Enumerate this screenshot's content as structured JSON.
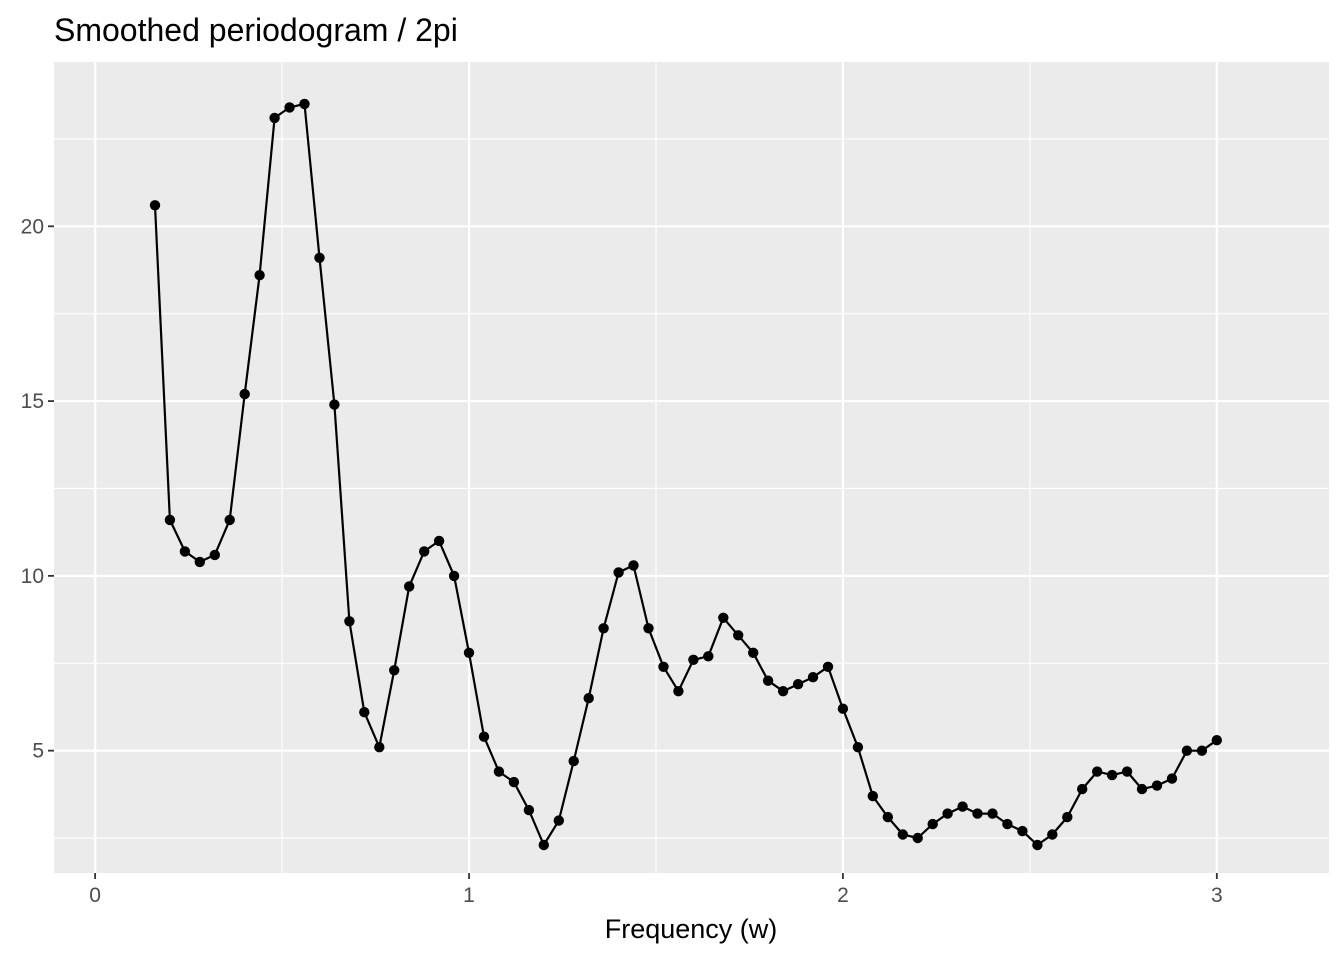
{
  "chart_data": {
    "type": "line",
    "title": "Smoothed periodogram / 2pi",
    "xlabel": "Frequency (w)",
    "ylabel": "",
    "xlim": [
      -0.11,
      3.3
    ],
    "ylim": [
      1.5,
      24.7
    ],
    "x_ticks": [
      0,
      1,
      2,
      3
    ],
    "y_ticks": [
      5,
      10,
      15,
      20
    ],
    "x_tick_labels": [
      "0",
      "1",
      "2",
      "3"
    ],
    "y_tick_labels": [
      "5",
      "10",
      "15",
      "20"
    ],
    "grid": true,
    "panel_background": "#ebebeb",
    "line_color": "#000000",
    "point_color": "#000000",
    "series": [
      {
        "x": [
          0.16,
          0.2,
          0.24,
          0.28,
          0.32,
          0.36,
          0.4,
          0.44,
          0.48,
          0.52,
          0.56,
          0.6,
          0.64,
          0.68,
          0.72,
          0.76,
          0.8,
          0.84,
          0.88,
          0.92,
          0.96,
          1.0,
          1.04,
          1.08,
          1.12,
          1.16,
          1.2,
          1.24,
          1.28,
          1.32,
          1.36,
          1.4,
          1.44,
          1.48,
          1.52,
          1.56,
          1.6,
          1.64,
          1.68,
          1.72,
          1.76,
          1.8,
          1.84,
          1.88,
          1.92,
          1.96,
          2.0,
          2.04,
          2.08,
          2.12,
          2.16,
          2.2,
          2.24,
          2.28,
          2.32,
          2.36,
          2.4,
          2.44,
          2.48,
          2.52,
          2.56,
          2.6,
          2.64,
          2.68,
          2.72,
          2.76,
          2.8,
          2.84,
          2.88,
          2.92,
          2.96,
          3.0
        ],
        "values": [
          20.6,
          11.6,
          10.7,
          10.4,
          10.6,
          11.6,
          15.2,
          18.6,
          23.1,
          23.4,
          23.5,
          19.1,
          14.9,
          8.7,
          6.1,
          5.1,
          7.3,
          9.7,
          10.7,
          11.0,
          10.0,
          7.8,
          5.4,
          4.4,
          4.1,
          3.3,
          2.3,
          3.0,
          4.7,
          6.5,
          8.5,
          10.1,
          10.3,
          8.5,
          7.4,
          6.7,
          7.6,
          7.7,
          8.8,
          8.3,
          7.8,
          7.0,
          6.7,
          6.9,
          7.1,
          7.4,
          6.2,
          5.1,
          3.7,
          3.1,
          2.6,
          2.5,
          2.9,
          3.2,
          3.4,
          3.2,
          3.2,
          2.9,
          2.7,
          2.3,
          2.6,
          3.1,
          3.9,
          4.4,
          4.3,
          4.4,
          3.9,
          4.0,
          4.2,
          5.0,
          5.0,
          5.3
        ]
      }
    ]
  }
}
